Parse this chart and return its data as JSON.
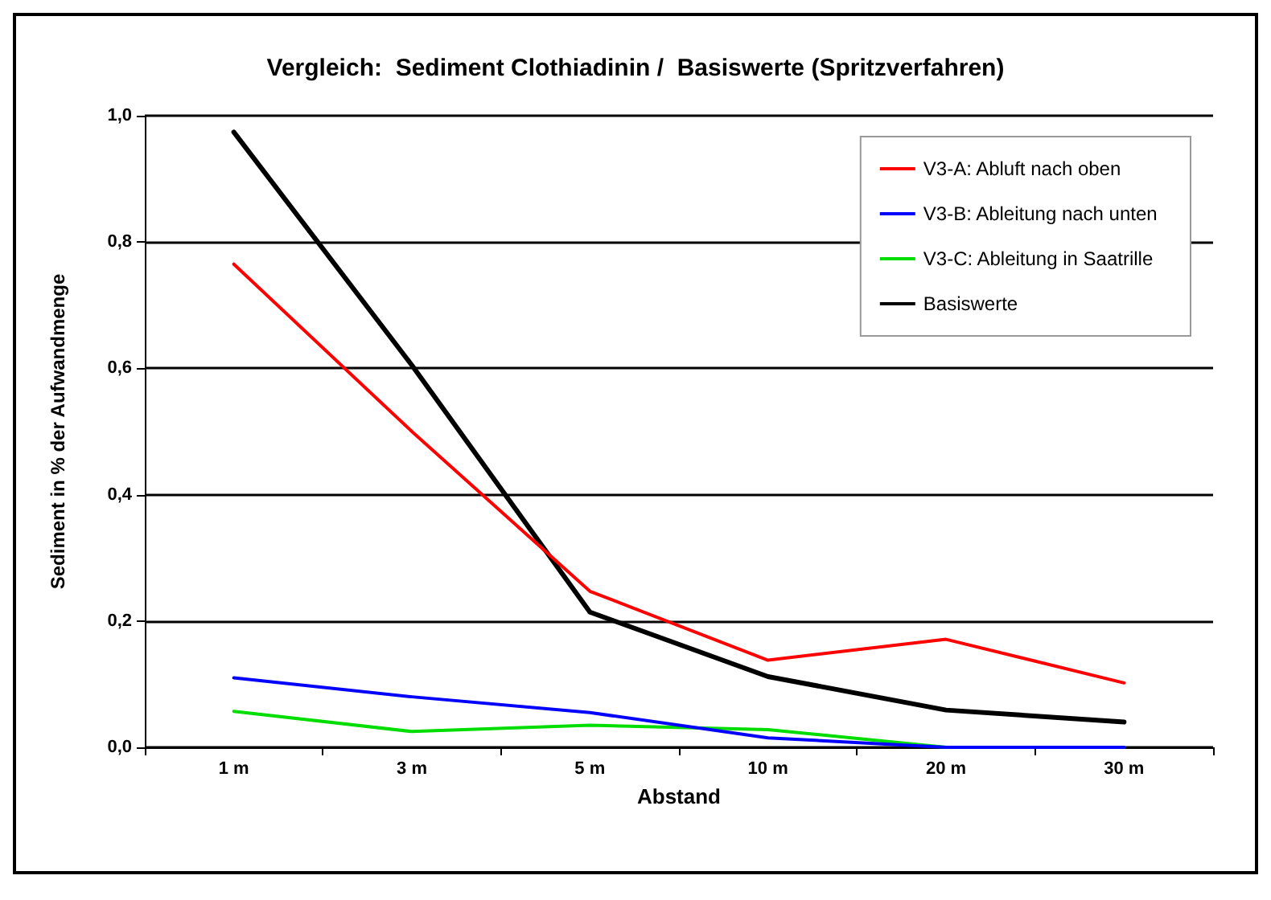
{
  "chart_data": {
    "type": "line",
    "title": "Vergleich:  Sediment Clothiadinin /  Basiswerte (Spritzverfahren)",
    "xlabel": "Abstand",
    "ylabel": "Sediment in % der Aufwandmenge",
    "categories": [
      "1 m",
      "3 m",
      "5 m",
      "10 m",
      "20 m",
      "30 m"
    ],
    "series": [
      {
        "name": "V3-A: Abluft nach oben",
        "color": "#ff0000",
        "values": [
          0.765,
          0.5,
          0.247,
          0.138,
          0.171,
          0.102
        ]
      },
      {
        "name": "V3-B: Ableitung nach unten",
        "color": "#0000ff",
        "values": [
          0.11,
          0.08,
          0.055,
          0.015,
          0.0,
          0.0
        ]
      },
      {
        "name": "V3-C: Ableitung in Saatrille",
        "color": "#00dd00",
        "values": [
          0.057,
          0.025,
          0.035,
          0.028,
          0.0,
          0.0
        ]
      },
      {
        "name": "Basiswerte",
        "color": "#000000",
        "values": [
          0.974,
          0.605,
          0.214,
          0.112,
          0.059,
          0.04
        ]
      }
    ],
    "ylim": [
      0,
      1
    ],
    "yticks": [
      {
        "value": 0,
        "label": "0,0"
      },
      {
        "value": 0.2,
        "label": "0,2"
      },
      {
        "value": 0.4,
        "label": "0,4"
      },
      {
        "value": 0.6,
        "label": "0,6"
      },
      {
        "value": 0.8,
        "label": "0,8"
      },
      {
        "value": 1,
        "label": "1,0"
      }
    ],
    "grid": "y",
    "legend": "top right",
    "marker": "none",
    "line_style": "solid"
  }
}
